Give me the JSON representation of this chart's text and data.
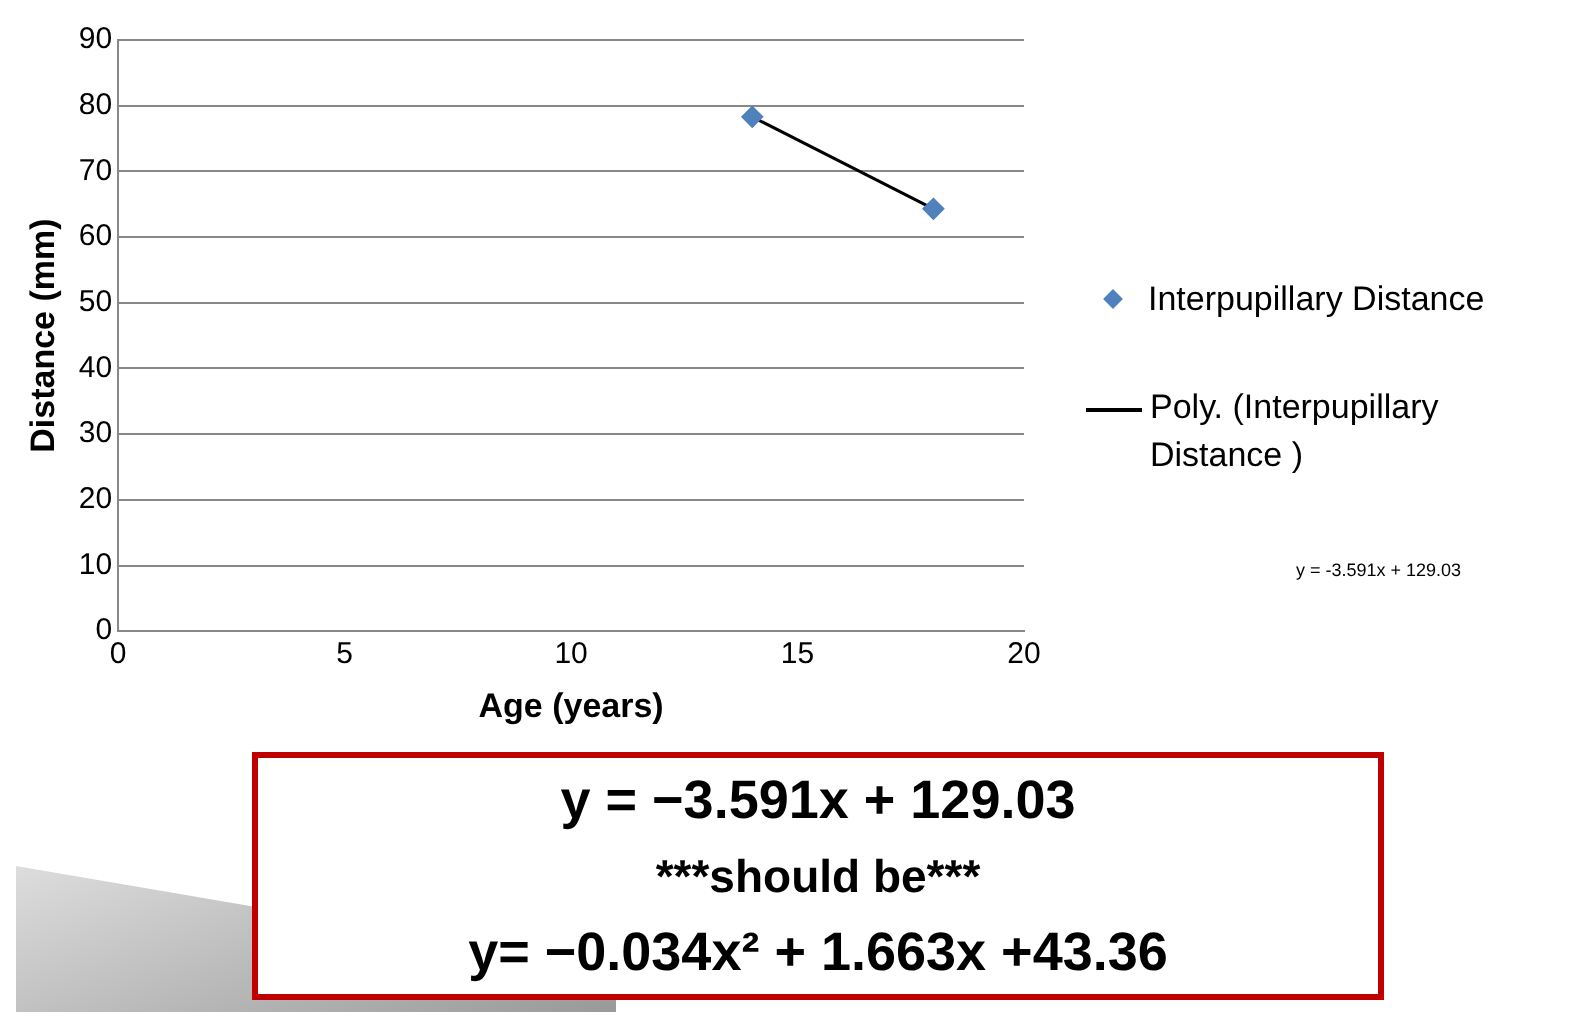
{
  "chart_data": {
    "type": "scatter",
    "xlabel": "Age (years)",
    "ylabel": "Distance (mm)",
    "x": [
      14,
      18
    ],
    "series": [
      {
        "name": "Interpupillary Distance",
        "color": "#4f81bd",
        "values": [
          78.3,
          64.3
        ],
        "marker": "diamond"
      },
      {
        "name": "Poly. (Interpupillary Distance )",
        "type": "line",
        "color": "#000000",
        "x": [
          14,
          18
        ],
        "values": [
          78.3,
          64.3
        ],
        "marker": "none",
        "line_style": "solid"
      }
    ],
    "xlim": [
      0,
      20
    ],
    "xticks": [
      0,
      5,
      10,
      15,
      20
    ],
    "ylim": [
      0,
      90
    ],
    "yticks": [
      0,
      10,
      20,
      30,
      40,
      50,
      60,
      70,
      80,
      90
    ],
    "grid": "y",
    "legend": "right",
    "annotations": [
      "y = -3.591x + 129.03",
      "y = −3.591x + 129.03",
      "***should be***",
      "y= −0.034x² + 1.663x +43.36"
    ]
  }
}
